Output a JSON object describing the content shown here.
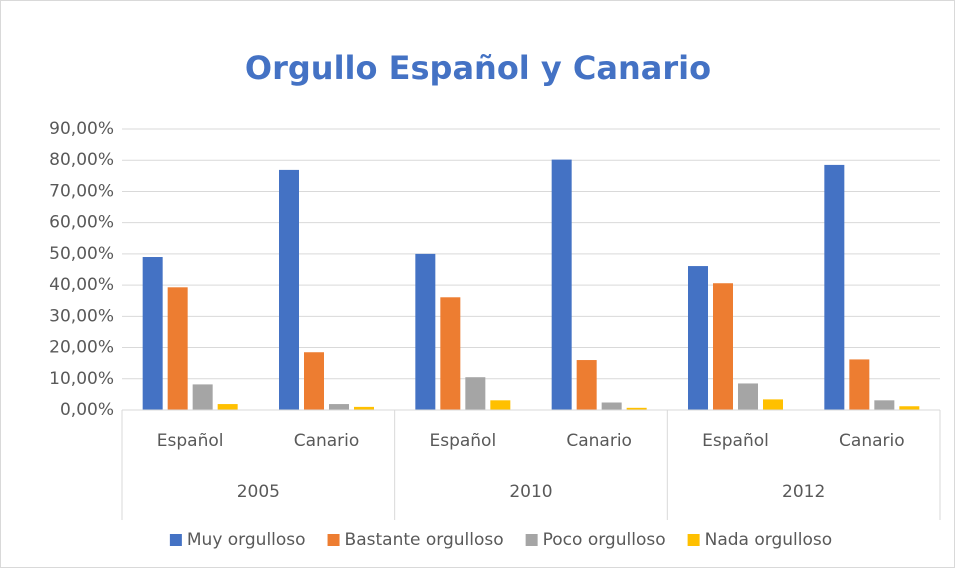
{
  "chart_data": {
    "type": "bar",
    "title": "Orgullo Español y Canario",
    "categories": [
      "Español",
      "Canario",
      "Español",
      "Canario",
      "Español",
      "Canario"
    ],
    "category_groups": [
      "2005",
      "2010",
      "2012"
    ],
    "series": [
      {
        "name": "Muy orgulloso",
        "color": "#4472c4",
        "values": [
          49,
          76.9,
          50,
          80.2,
          46.1,
          78.5
        ]
      },
      {
        "name": "Bastante orgulloso",
        "color": "#ed7d31",
        "values": [
          39.3,
          18.5,
          36.1,
          16,
          40.6,
          16.2
        ]
      },
      {
        "name": "Poco orgulloso",
        "color": "#a5a5a5",
        "values": [
          8.2,
          1.9,
          10.5,
          2.4,
          8.5,
          3.1
        ]
      },
      {
        "name": "Nada orgulloso",
        "color": "#ffc000",
        "values": [
          1.9,
          1,
          3.1,
          0.7,
          3.4,
          1.2
        ]
      }
    ],
    "ylim": [
      0,
      90
    ],
    "yticks": [
      {
        "value": 0,
        "label": "0,00%"
      },
      {
        "value": 10,
        "label": "10,00%"
      },
      {
        "value": 20,
        "label": "20,00%"
      },
      {
        "value": 30,
        "label": "30,00%"
      },
      {
        "value": 40,
        "label": "40,00%"
      },
      {
        "value": 50,
        "label": "50,00%"
      },
      {
        "value": 60,
        "label": "60,00%"
      },
      {
        "value": 70,
        "label": "70,00%"
      },
      {
        "value": 80,
        "label": "80,00%"
      },
      {
        "value": 90,
        "label": "90,00%"
      }
    ],
    "grid": true,
    "legend": "bottom"
  }
}
